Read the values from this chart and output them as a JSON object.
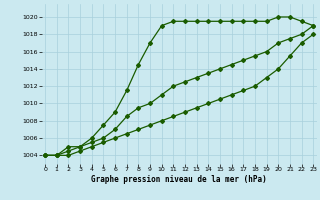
{
  "xlabel": "Graphe pression niveau de la mer (hPa)",
  "bg_color": "#cbe9f0",
  "grid_color": "#a8d0dc",
  "line_color": "#1a5c00",
  "x_ticks": [
    0,
    1,
    2,
    3,
    4,
    5,
    6,
    7,
    8,
    9,
    10,
    11,
    12,
    13,
    14,
    15,
    16,
    17,
    18,
    19,
    20,
    21,
    22,
    23
  ],
  "y_ticks": [
    1004,
    1006,
    1008,
    1010,
    1012,
    1014,
    1016,
    1018,
    1020
  ],
  "ylim": [
    1003.0,
    1021.5
  ],
  "xlim": [
    -0.3,
    23.3
  ],
  "line1_x": [
    0,
    1,
    2,
    3,
    4,
    5,
    6,
    7,
    8,
    9,
    10,
    11,
    12,
    13,
    14,
    15,
    16,
    17,
    18,
    19,
    20,
    21,
    22,
    23
  ],
  "line1_y": [
    1004,
    1004,
    1005,
    1005,
    1006,
    1007.5,
    1009,
    1011.5,
    1014.5,
    1017,
    1019,
    1019.5,
    1019.5,
    1019.5,
    1019.5,
    1019.5,
    1019.5,
    1019.5,
    1019.5,
    1019.5,
    1020,
    1020,
    1019.5,
    1019
  ],
  "line2_x": [
    0,
    1,
    2,
    3,
    4,
    5,
    6,
    7,
    8,
    9,
    10,
    11,
    12,
    13,
    14,
    15,
    16,
    17,
    18,
    19,
    20,
    21,
    22,
    23
  ],
  "line2_y": [
    1004,
    1004,
    1004.5,
    1005,
    1005.5,
    1006,
    1007,
    1008.5,
    1009.5,
    1010,
    1011,
    1012,
    1012.5,
    1013,
    1013.5,
    1014,
    1014.5,
    1015,
    1015.5,
    1016,
    1017,
    1017.5,
    1018,
    1019
  ],
  "line3_x": [
    0,
    1,
    2,
    3,
    4,
    5,
    6,
    7,
    8,
    9,
    10,
    11,
    12,
    13,
    14,
    15,
    16,
    17,
    18,
    19,
    20,
    21,
    22,
    23
  ],
  "line3_y": [
    1004,
    1004,
    1004,
    1004.5,
    1005,
    1005.5,
    1006,
    1006.5,
    1007,
    1007.5,
    1008,
    1008.5,
    1009,
    1009.5,
    1010,
    1010.5,
    1011,
    1011.5,
    1012,
    1013,
    1014,
    1015.5,
    1017,
    1018
  ]
}
